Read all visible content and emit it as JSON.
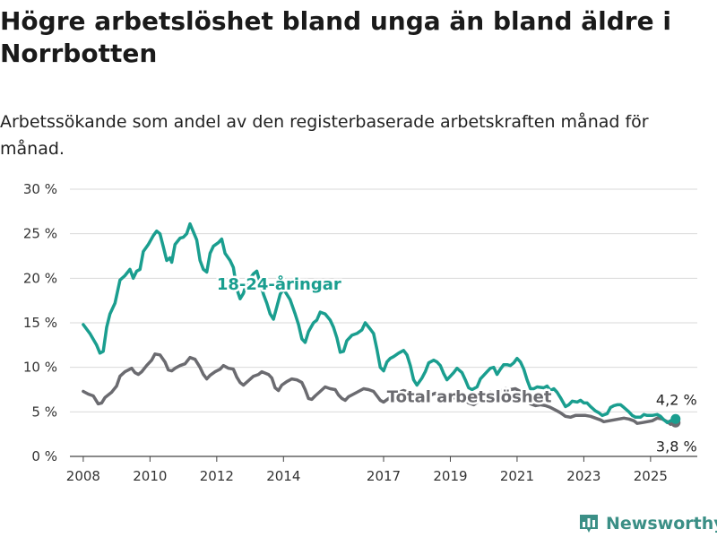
{
  "title": "Högre arbetslöshet bland unga än bland äldre i Norrbotten",
  "subtitle": "Arbetssökande som andel av den registerbaserade arbetskraften månad för månad.",
  "brand": {
    "name": "Newsworthy",
    "icon": "bar-chart-logo-icon",
    "color": "#3b8f86"
  },
  "colors": {
    "young": "#1a9e8f",
    "total": "#6b6b70",
    "grid": "#d9d9d9",
    "axis": "#444444"
  },
  "chart_data": {
    "type": "line",
    "ylim": [
      0,
      30
    ],
    "yticks": [
      0,
      5,
      10,
      15,
      20,
      25,
      30
    ],
    "ytick_labels": [
      "0 %",
      "5 %",
      "10 %",
      "15 %",
      "20 %",
      "25 %",
      "30 %"
    ],
    "xlim": [
      2007.6,
      2026.4
    ],
    "xticks": [
      2008,
      2010,
      2012,
      2014,
      2017,
      2019,
      2021,
      2023,
      2025
    ],
    "xtick_labels": [
      "2008",
      "2010",
      "2012",
      "2014",
      "2017",
      "2019",
      "2021",
      "2023",
      "2025"
    ],
    "grid": true,
    "series": [
      {
        "name": "18-24-åringar",
        "color": "#1a9e8f",
        "label_position": [
          2012.0,
          18.7
        ],
        "end_label": "4,2 %",
        "points": [
          [
            2008.0,
            14.8
          ],
          [
            2008.2,
            13.8
          ],
          [
            2008.4,
            12.5
          ],
          [
            2008.5,
            11.6
          ],
          [
            2008.6,
            11.8
          ],
          [
            2008.7,
            14.5
          ],
          [
            2008.8,
            16.0
          ],
          [
            2008.95,
            17.2
          ],
          [
            2009.1,
            19.8
          ],
          [
            2009.25,
            20.3
          ],
          [
            2009.4,
            21.0
          ],
          [
            2009.5,
            20.0
          ],
          [
            2009.6,
            20.8
          ],
          [
            2009.7,
            21.0
          ],
          [
            2009.8,
            23.0
          ],
          [
            2009.95,
            23.8
          ],
          [
            2010.1,
            24.8
          ],
          [
            2010.2,
            25.3
          ],
          [
            2010.3,
            25.0
          ],
          [
            2010.4,
            23.5
          ],
          [
            2010.5,
            22.0
          ],
          [
            2010.6,
            22.3
          ],
          [
            2010.65,
            21.8
          ],
          [
            2010.75,
            23.8
          ],
          [
            2010.9,
            24.5
          ],
          [
            2011.0,
            24.6
          ],
          [
            2011.1,
            25.0
          ],
          [
            2011.2,
            26.1
          ],
          [
            2011.3,
            25.2
          ],
          [
            2011.4,
            24.3
          ],
          [
            2011.5,
            22.0
          ],
          [
            2011.6,
            21.0
          ],
          [
            2011.7,
            20.7
          ],
          [
            2011.8,
            22.8
          ],
          [
            2011.9,
            23.6
          ],
          [
            2012.05,
            24.0
          ],
          [
            2012.15,
            24.4
          ],
          [
            2012.25,
            22.8
          ],
          [
            2012.4,
            22.0
          ],
          [
            2012.5,
            21.2
          ],
          [
            2012.6,
            18.8
          ],
          [
            2012.7,
            17.7
          ],
          [
            2012.8,
            18.3
          ],
          [
            2012.9,
            19.6
          ],
          [
            2013.0,
            20.0
          ],
          [
            2013.1,
            20.5
          ],
          [
            2013.2,
            20.8
          ],
          [
            2013.3,
            19.5
          ],
          [
            2013.4,
            18.2
          ],
          [
            2013.5,
            17.2
          ],
          [
            2013.6,
            16.0
          ],
          [
            2013.7,
            15.4
          ],
          [
            2013.8,
            16.8
          ],
          [
            2013.9,
            18.2
          ],
          [
            2014.0,
            18.8
          ],
          [
            2014.1,
            18.2
          ],
          [
            2014.2,
            17.6
          ],
          [
            2014.35,
            16.0
          ],
          [
            2014.45,
            14.8
          ],
          [
            2014.55,
            13.2
          ],
          [
            2014.65,
            12.8
          ],
          [
            2014.75,
            14.0
          ],
          [
            2014.9,
            15.0
          ],
          [
            2015.0,
            15.3
          ],
          [
            2015.1,
            16.2
          ],
          [
            2015.25,
            16.0
          ],
          [
            2015.4,
            15.3
          ],
          [
            2015.5,
            14.5
          ],
          [
            2015.6,
            13.3
          ],
          [
            2015.7,
            11.7
          ],
          [
            2015.8,
            11.8
          ],
          [
            2015.9,
            13.0
          ],
          [
            2016.05,
            13.6
          ],
          [
            2016.2,
            13.8
          ],
          [
            2016.35,
            14.2
          ],
          [
            2016.45,
            15.0
          ],
          [
            2016.6,
            14.3
          ],
          [
            2016.7,
            13.8
          ],
          [
            2016.8,
            12.0
          ],
          [
            2016.9,
            10.0
          ],
          [
            2017.0,
            9.6
          ],
          [
            2017.1,
            10.6
          ],
          [
            2017.2,
            11.0
          ],
          [
            2017.3,
            11.2
          ],
          [
            2017.45,
            11.6
          ],
          [
            2017.6,
            11.9
          ],
          [
            2017.7,
            11.4
          ],
          [
            2017.8,
            10.2
          ],
          [
            2017.9,
            8.6
          ],
          [
            2018.0,
            8.0
          ],
          [
            2018.15,
            8.8
          ],
          [
            2018.25,
            9.5
          ],
          [
            2018.35,
            10.5
          ],
          [
            2018.5,
            10.8
          ],
          [
            2018.6,
            10.6
          ],
          [
            2018.7,
            10.2
          ],
          [
            2018.8,
            9.3
          ],
          [
            2018.9,
            8.6
          ],
          [
            2019.0,
            9.0
          ],
          [
            2019.1,
            9.4
          ],
          [
            2019.2,
            9.9
          ],
          [
            2019.35,
            9.4
          ],
          [
            2019.45,
            8.6
          ],
          [
            2019.55,
            7.7
          ],
          [
            2019.65,
            7.5
          ],
          [
            2019.8,
            7.8
          ],
          [
            2019.9,
            8.7
          ],
          [
            2020.0,
            9.1
          ],
          [
            2020.1,
            9.5
          ],
          [
            2020.2,
            9.9
          ],
          [
            2020.3,
            10.0
          ],
          [
            2020.4,
            9.2
          ],
          [
            2020.5,
            9.8
          ],
          [
            2020.6,
            10.3
          ],
          [
            2020.7,
            10.3
          ],
          [
            2020.8,
            10.2
          ],
          [
            2020.9,
            10.5
          ],
          [
            2021.0,
            11.0
          ],
          [
            2021.1,
            10.6
          ],
          [
            2021.2,
            9.8
          ],
          [
            2021.3,
            8.6
          ],
          [
            2021.4,
            7.6
          ],
          [
            2021.5,
            7.6
          ],
          [
            2021.6,
            7.8
          ],
          [
            2021.8,
            7.7
          ],
          [
            2021.9,
            7.9
          ],
          [
            2022.0,
            7.4
          ],
          [
            2022.1,
            7.6
          ],
          [
            2022.2,
            7.2
          ],
          [
            2022.3,
            6.6
          ],
          [
            2022.45,
            5.6
          ],
          [
            2022.55,
            5.8
          ],
          [
            2022.65,
            6.2
          ],
          [
            2022.8,
            6.1
          ],
          [
            2022.9,
            6.3
          ],
          [
            2023.0,
            6.0
          ],
          [
            2023.1,
            6.0
          ],
          [
            2023.2,
            5.6
          ],
          [
            2023.35,
            5.1
          ],
          [
            2023.45,
            4.9
          ],
          [
            2023.55,
            4.6
          ],
          [
            2023.7,
            4.8
          ],
          [
            2023.8,
            5.5
          ],
          [
            2023.9,
            5.7
          ],
          [
            2024.0,
            5.8
          ],
          [
            2024.1,
            5.8
          ],
          [
            2024.2,
            5.5
          ],
          [
            2024.35,
            5.0
          ],
          [
            2024.45,
            4.6
          ],
          [
            2024.55,
            4.4
          ],
          [
            2024.7,
            4.4
          ],
          [
            2024.8,
            4.7
          ],
          [
            2024.9,
            4.6
          ],
          [
            2025.05,
            4.6
          ],
          [
            2025.2,
            4.7
          ],
          [
            2025.3,
            4.5
          ],
          [
            2025.4,
            4.1
          ],
          [
            2025.5,
            3.8
          ],
          [
            2025.6,
            4.0
          ],
          [
            2025.75,
            4.2
          ]
        ]
      },
      {
        "name": "Total arbetslöshet",
        "color": "#6b6b70",
        "label_position": [
          2017.1,
          6.1
        ],
        "end_label": "3,8 %",
        "points": [
          [
            2008.0,
            7.3
          ],
          [
            2008.15,
            7.0
          ],
          [
            2008.3,
            6.8
          ],
          [
            2008.45,
            5.9
          ],
          [
            2008.55,
            6.0
          ],
          [
            2008.65,
            6.6
          ],
          [
            2008.85,
            7.2
          ],
          [
            2009.0,
            7.9
          ],
          [
            2009.1,
            9.0
          ],
          [
            2009.25,
            9.5
          ],
          [
            2009.45,
            9.9
          ],
          [
            2009.55,
            9.4
          ],
          [
            2009.65,
            9.2
          ],
          [
            2009.75,
            9.5
          ],
          [
            2009.9,
            10.2
          ],
          [
            2010.05,
            10.8
          ],
          [
            2010.15,
            11.5
          ],
          [
            2010.3,
            11.4
          ],
          [
            2010.45,
            10.6
          ],
          [
            2010.55,
            9.7
          ],
          [
            2010.65,
            9.6
          ],
          [
            2010.75,
            9.9
          ],
          [
            2010.9,
            10.2
          ],
          [
            2011.05,
            10.4
          ],
          [
            2011.2,
            11.1
          ],
          [
            2011.35,
            10.9
          ],
          [
            2011.5,
            10.0
          ],
          [
            2011.6,
            9.2
          ],
          [
            2011.7,
            8.7
          ],
          [
            2011.8,
            9.1
          ],
          [
            2011.95,
            9.5
          ],
          [
            2012.1,
            9.8
          ],
          [
            2012.2,
            10.2
          ],
          [
            2012.35,
            9.9
          ],
          [
            2012.5,
            9.8
          ],
          [
            2012.6,
            8.9
          ],
          [
            2012.7,
            8.3
          ],
          [
            2012.8,
            8.0
          ],
          [
            2012.95,
            8.5
          ],
          [
            2013.1,
            9.0
          ],
          [
            2013.25,
            9.2
          ],
          [
            2013.35,
            9.5
          ],
          [
            2013.55,
            9.2
          ],
          [
            2013.65,
            8.8
          ],
          [
            2013.75,
            7.7
          ],
          [
            2013.85,
            7.4
          ],
          [
            2013.95,
            8.0
          ],
          [
            2014.1,
            8.4
          ],
          [
            2014.25,
            8.7
          ],
          [
            2014.4,
            8.6
          ],
          [
            2014.55,
            8.3
          ],
          [
            2014.65,
            7.5
          ],
          [
            2014.75,
            6.5
          ],
          [
            2014.85,
            6.4
          ],
          [
            2014.95,
            6.8
          ],
          [
            2015.1,
            7.3
          ],
          [
            2015.25,
            7.8
          ],
          [
            2015.4,
            7.6
          ],
          [
            2015.55,
            7.5
          ],
          [
            2015.65,
            6.9
          ],
          [
            2015.75,
            6.5
          ],
          [
            2015.85,
            6.3
          ],
          [
            2015.95,
            6.7
          ],
          [
            2016.1,
            7.0
          ],
          [
            2016.25,
            7.3
          ],
          [
            2016.4,
            7.6
          ],
          [
            2016.55,
            7.5
          ],
          [
            2016.7,
            7.3
          ],
          [
            2016.8,
            6.8
          ],
          [
            2016.9,
            6.3
          ],
          [
            2017.0,
            6.1
          ],
          [
            2017.15,
            6.5
          ],
          [
            2017.3,
            6.8
          ],
          [
            2017.45,
            7.2
          ],
          [
            2017.6,
            7.4
          ],
          [
            2017.75,
            7.2
          ],
          [
            2017.9,
            6.8
          ],
          [
            2018.05,
            6.4
          ],
          [
            2018.2,
            6.5
          ],
          [
            2018.35,
            6.8
          ],
          [
            2018.55,
            7.1
          ],
          [
            2018.7,
            6.8
          ],
          [
            2018.85,
            6.3
          ],
          [
            2019.0,
            6.4
          ],
          [
            2019.2,
            6.7
          ],
          [
            2019.4,
            6.5
          ],
          [
            2019.55,
            6.0
          ],
          [
            2019.7,
            5.8
          ],
          [
            2019.85,
            6.2
          ],
          [
            2020.05,
            6.7
          ],
          [
            2020.2,
            7.2
          ],
          [
            2020.35,
            7.0
          ],
          [
            2020.5,
            7.3
          ],
          [
            2020.65,
            7.6
          ],
          [
            2020.8,
            7.5
          ],
          [
            2020.95,
            7.6
          ],
          [
            2021.1,
            7.3
          ],
          [
            2021.25,
            6.7
          ],
          [
            2021.4,
            5.9
          ],
          [
            2021.55,
            5.7
          ],
          [
            2021.7,
            5.8
          ],
          [
            2021.85,
            5.7
          ],
          [
            2022.0,
            5.5
          ],
          [
            2022.15,
            5.2
          ],
          [
            2022.3,
            4.9
          ],
          [
            2022.45,
            4.5
          ],
          [
            2022.6,
            4.4
          ],
          [
            2022.75,
            4.6
          ],
          [
            2022.9,
            4.6
          ],
          [
            2023.05,
            4.6
          ],
          [
            2023.2,
            4.5
          ],
          [
            2023.35,
            4.3
          ],
          [
            2023.5,
            4.1
          ],
          [
            2023.6,
            3.9
          ],
          [
            2023.75,
            4.0
          ],
          [
            2023.9,
            4.1
          ],
          [
            2024.05,
            4.2
          ],
          [
            2024.2,
            4.3
          ],
          [
            2024.35,
            4.2
          ],
          [
            2024.5,
            4.0
          ],
          [
            2024.6,
            3.7
          ],
          [
            2024.75,
            3.8
          ],
          [
            2024.9,
            3.9
          ],
          [
            2025.05,
            4.0
          ],
          [
            2025.2,
            4.3
          ],
          [
            2025.35,
            4.2
          ],
          [
            2025.5,
            3.9
          ],
          [
            2025.6,
            3.6
          ],
          [
            2025.75,
            3.8
          ]
        ]
      }
    ]
  }
}
